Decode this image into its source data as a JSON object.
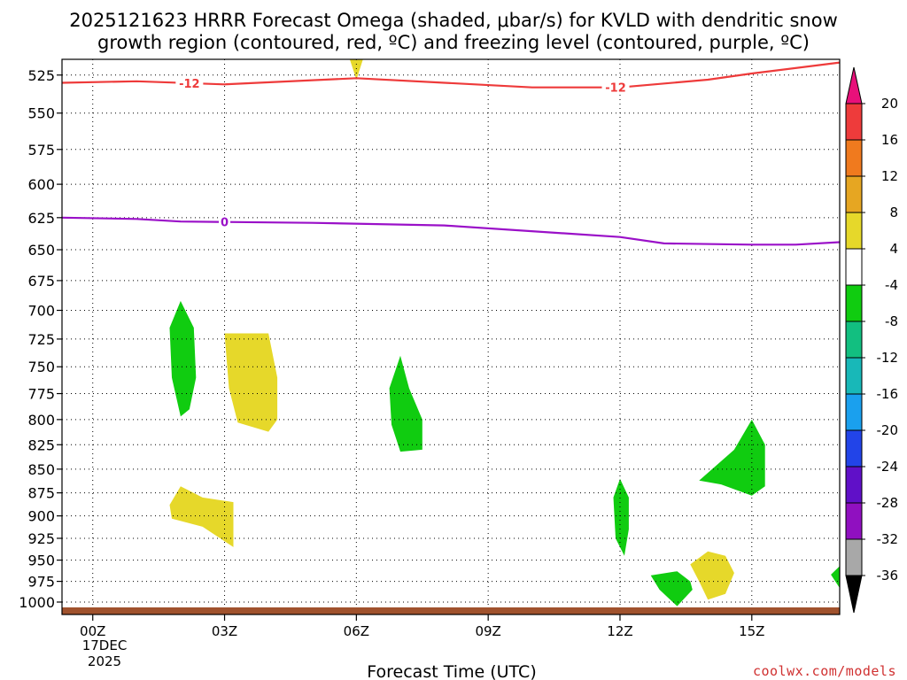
{
  "title": {
    "line1": "2025121623 HRRR Forecast Omega (shaded, μbar/s) for KVLD with dendritic snow",
    "line2": "growth region (contoured, red, ºC) and freezing level (contoured, purple, ºC)"
  },
  "credit": "coolwx.com/models",
  "chart_data": {
    "type": "time-height",
    "xlabel": "Forecast Time (UTC)",
    "x_ticks": [
      {
        "hour": 0,
        "label": "00Z"
      },
      {
        "hour": 3,
        "label": "03Z"
      },
      {
        "hour": 6,
        "label": "06Z"
      },
      {
        "hour": 9,
        "label": "09Z"
      },
      {
        "hour": 12,
        "label": "12Z"
      },
      {
        "hour": 15,
        "label": "15Z"
      }
    ],
    "x_date_label": {
      "hour": 0,
      "day": "17DEC",
      "year": "2025"
    },
    "xlim_hours": [
      -0.7,
      17.0
    ],
    "y_ticks": [
      525,
      550,
      575,
      600,
      625,
      650,
      675,
      700,
      725,
      750,
      775,
      800,
      825,
      850,
      875,
      900,
      925,
      950,
      975,
      1000
    ],
    "ylim_hPa": [
      515,
      1012
    ],
    "y_scale": "log",
    "grid": true,
    "colorbar": {
      "labels": [
        "20",
        "16",
        "12",
        "8",
        "4",
        "-4",
        "-8",
        "-12",
        "-16",
        "-20",
        "-24",
        "-28",
        "-32",
        "-36"
      ],
      "colors": [
        "#e8107a",
        "#ee3b3b",
        "#f07a1e",
        "#e6a622",
        "#e6d82a",
        "#ffffff",
        "#10cc10",
        "#12bf80",
        "#18b8b8",
        "#1aa0ee",
        "#2244e8",
        "#6010c8",
        "#9010c0",
        "#a8a8a8",
        "#000000"
      ]
    },
    "contours": [
      {
        "name": "dendritic snow growth region",
        "level": "-12",
        "color": "#ee3a3a",
        "label_hours": [
          2.2,
          11.9
        ],
        "points": [
          [
            -0.7,
            530
          ],
          [
            1,
            529
          ],
          [
            3,
            531
          ],
          [
            6,
            527
          ],
          [
            8,
            530
          ],
          [
            10,
            533
          ],
          [
            12,
            533
          ],
          [
            14,
            528
          ],
          [
            15,
            524
          ],
          [
            17,
            517
          ]
        ]
      },
      {
        "name": "freezing level",
        "level": "0",
        "color": "#9a10c8",
        "label_hours": [
          3.0
        ],
        "points": [
          [
            -0.7,
            625
          ],
          [
            1,
            626
          ],
          [
            2,
            628
          ],
          [
            5,
            629
          ],
          [
            8,
            631
          ],
          [
            12,
            640
          ],
          [
            13,
            645
          ],
          [
            15,
            646
          ],
          [
            16,
            646
          ],
          [
            17,
            644
          ]
        ]
      }
    ],
    "omega_regions": [
      {
        "name": "upward-1",
        "value": "-4 to -8",
        "color": "#10cc10",
        "points": [
          [
            2.0,
            692
          ],
          [
            2.3,
            715
          ],
          [
            2.35,
            760
          ],
          [
            2.2,
            790
          ],
          [
            2.0,
            797
          ],
          [
            1.8,
            760
          ],
          [
            1.75,
            715
          ]
        ]
      },
      {
        "name": "downward-1",
        "value": "4 to 8",
        "color": "#e6d82a",
        "points": [
          [
            3.0,
            720
          ],
          [
            4.0,
            720
          ],
          [
            4.2,
            760
          ],
          [
            4.2,
            800
          ],
          [
            4.0,
            812
          ],
          [
            3.3,
            803
          ],
          [
            3.1,
            770
          ]
        ]
      },
      {
        "name": "upward-2",
        "value": "-4 to -8",
        "color": "#10cc10",
        "points": [
          [
            7.0,
            740
          ],
          [
            7.2,
            770
          ],
          [
            7.5,
            800
          ],
          [
            7.5,
            830
          ],
          [
            7.0,
            832
          ],
          [
            6.8,
            805
          ],
          [
            6.75,
            770
          ]
        ]
      },
      {
        "name": "downward-2",
        "value": "4 to 8",
        "color": "#e6d82a",
        "points": [
          [
            2.0,
            868
          ],
          [
            2.5,
            880
          ],
          [
            3.2,
            885
          ],
          [
            3.2,
            935
          ],
          [
            2.5,
            912
          ],
          [
            1.8,
            903
          ],
          [
            1.75,
            888
          ]
        ]
      },
      {
        "name": "upward-3",
        "value": "-4 to -8",
        "color": "#10cc10",
        "points": [
          [
            12.0,
            860
          ],
          [
            12.2,
            880
          ],
          [
            12.2,
            915
          ],
          [
            12.1,
            945
          ],
          [
            11.9,
            925
          ],
          [
            11.85,
            880
          ]
        ]
      },
      {
        "name": "upward-4",
        "value": "-4 to -8",
        "color": "#10cc10",
        "points": [
          [
            15.0,
            800
          ],
          [
            15.3,
            825
          ],
          [
            15.3,
            868
          ],
          [
            15.0,
            878
          ],
          [
            14.3,
            866
          ],
          [
            13.8,
            862
          ],
          [
            14.6,
            830
          ]
        ]
      },
      {
        "name": "upward-5",
        "value": "-4 to -8",
        "color": "#10cc10",
        "points": [
          [
            13.3,
            963
          ],
          [
            13.6,
            975
          ],
          [
            13.65,
            985
          ],
          [
            13.3,
            1005
          ],
          [
            12.9,
            985
          ],
          [
            12.7,
            968
          ]
        ]
      },
      {
        "name": "downward-3",
        "value": "4 to 8",
        "color": "#e6d82a",
        "points": [
          [
            14.0,
            940
          ],
          [
            14.4,
            945
          ],
          [
            14.6,
            965
          ],
          [
            14.4,
            990
          ],
          [
            14.0,
            997
          ],
          [
            13.8,
            975
          ],
          [
            13.6,
            955
          ]
        ]
      },
      {
        "name": "upward-6",
        "value": "-4 to -8",
        "color": "#10cc10",
        "points": [
          [
            17.0,
            957
          ],
          [
            16.8,
            967
          ],
          [
            17.0,
            983
          ]
        ]
      },
      {
        "name": "downward-top",
        "value": "4 to 8",
        "color": "#e6d82a",
        "points": [
          [
            5.85,
            515
          ],
          [
            6.15,
            515
          ],
          [
            6.0,
            528
          ]
        ]
      }
    ]
  }
}
